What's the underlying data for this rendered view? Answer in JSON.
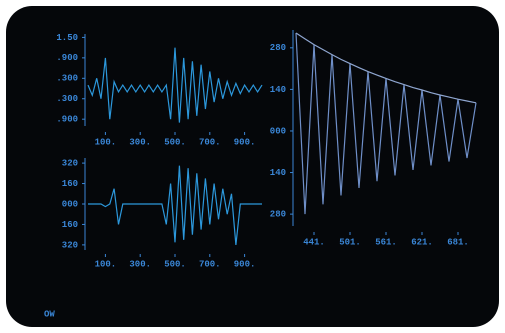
{
  "chart_data": [
    {
      "type": "line",
      "xlim": [
        0,
        1000
      ],
      "ylim": [
        -1.1,
        1.6
      ],
      "xticks": [
        {
          "value": 100,
          "label": "100."
        },
        {
          "value": 300,
          "label": "300."
        },
        {
          "value": 500,
          "label": "500."
        },
        {
          "value": 700,
          "label": "700."
        },
        {
          "value": 900,
          "label": "900."
        }
      ],
      "yticks": [
        {
          "value": 1.5,
          "label": "1.50"
        },
        {
          "value": 0.9,
          "label": ".900"
        },
        {
          "value": 0.3,
          "label": ".300"
        },
        {
          "value": -0.3,
          "label": ".300"
        },
        {
          "value": -0.9,
          "label": ".900"
        }
      ],
      "x": [
        0,
        25,
        50,
        75,
        100,
        125,
        150,
        175,
        200,
        225,
        250,
        275,
        300,
        325,
        350,
        375,
        400,
        425,
        450,
        475,
        500,
        525,
        550,
        575,
        600,
        625,
        650,
        675,
        700,
        725,
        750,
        775,
        800,
        825,
        850,
        875,
        900,
        925,
        950,
        975,
        1000
      ],
      "series": [
        {
          "color": "#2c98dc",
          "values": [
            0.1,
            -0.2,
            0.3,
            -0.3,
            0.9,
            -0.9,
            0.2,
            -0.1,
            0.1,
            -0.1,
            0.1,
            -0.1,
            0.1,
            -0.1,
            0.1,
            -0.1,
            0.1,
            -0.1,
            0.1,
            -0.9,
            1.2,
            -1.0,
            0.9,
            -0.9,
            0.8,
            -0.8,
            0.7,
            -0.6,
            0.5,
            -0.4,
            0.3,
            -0.3,
            0.2,
            -0.2,
            0.15,
            -0.15,
            0.1,
            -0.1,
            0.1,
            -0.1,
            0.1
          ]
        }
      ]
    },
    {
      "type": "line",
      "xlim": [
        0,
        1000
      ],
      "ylim": [
        -360,
        360
      ],
      "xticks": [
        {
          "value": 100,
          "label": "100."
        },
        {
          "value": 300,
          "label": "300."
        },
        {
          "value": 500,
          "label": "500."
        },
        {
          "value": 700,
          "label": "700."
        },
        {
          "value": 900,
          "label": "900."
        }
      ],
      "yticks": [
        320,
        160,
        {
          "value": 0,
          "label": "000"
        },
        {
          "value": -160,
          "label": "160"
        },
        {
          "value": -320,
          "label": "320"
        }
      ],
      "x": [
        0,
        25,
        50,
        75,
        100,
        125,
        150,
        175,
        200,
        225,
        250,
        275,
        300,
        325,
        350,
        375,
        400,
        425,
        450,
        475,
        500,
        525,
        550,
        575,
        600,
        625,
        650,
        675,
        700,
        725,
        750,
        775,
        800,
        825,
        850,
        875,
        900,
        925,
        950,
        975,
        1000
      ],
      "series": [
        {
          "color": "#2c98dc",
          "values": [
            0,
            0,
            0,
            0,
            -20,
            0,
            120,
            -160,
            0,
            0,
            0,
            0,
            0,
            0,
            0,
            0,
            0,
            0,
            -160,
            160,
            -300,
            300,
            -280,
            280,
            -240,
            240,
            -200,
            200,
            -160,
            160,
            -120,
            120,
            -80,
            80,
            -320,
            0,
            0,
            0,
            0,
            0,
            0
          ]
        }
      ]
    },
    {
      "type": "line",
      "xlim": [
        411,
        701
      ],
      "ylim": [
        -320,
        340
      ],
      "xticks": [
        {
          "value": 441,
          "label": "441."
        },
        {
          "value": 501,
          "label": "501."
        },
        {
          "value": 561,
          "label": "561."
        },
        {
          "value": 621,
          "label": "621."
        },
        {
          "value": 681,
          "label": "681."
        }
      ],
      "yticks": [
        280,
        140,
        {
          "value": 0,
          "label": "000"
        },
        {
          "value": -140,
          "label": "140"
        },
        {
          "value": -280,
          "label": "280"
        }
      ],
      "x": [
        411,
        426,
        441,
        456,
        471,
        486,
        501,
        516,
        531,
        546,
        561,
        576,
        591,
        606,
        621,
        636,
        651,
        666,
        681,
        696,
        711
      ],
      "series": [
        {
          "color": "#6f8fc8",
          "values": [
            330,
            -280,
            291,
            -247,
            257,
            -217,
            227,
            -192,
            200,
            -169,
            177,
            -150,
            156,
            -131,
            138,
            -116,
            121,
            -103,
            107,
            -91,
            95
          ]
        },
        {
          "color": "#8fa6d0",
          "values": [
            330,
            310,
            291,
            274,
            257,
            241,
            227,
            213,
            200,
            188,
            177,
            166,
            156,
            146,
            138,
            129,
            121,
            114,
            107,
            101,
            95
          ]
        }
      ]
    }
  ],
  "status": "OW"
}
